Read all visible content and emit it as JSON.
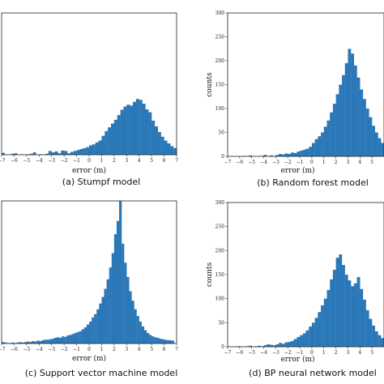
{
  "colors": {
    "bar": "#2b78b8",
    "frame": "#222222"
  },
  "chart_data": [
    {
      "type": "bar",
      "caption": "(a) Stumpf model",
      "xlabel": "error (m)",
      "ylabel": "",
      "xlim": [
        -7,
        7
      ],
      "ylim": [
        0,
        300
      ],
      "xticks": [
        "−7",
        "−6",
        "−5",
        "−4",
        "−3",
        "−2",
        "−1",
        "0",
        "1",
        "2",
        "3",
        "4",
        "5",
        "6",
        "7"
      ],
      "yticks": [],
      "bin_width": 0.25,
      "bin_start": -7,
      "values": [
        4,
        0,
        0,
        2,
        3,
        0,
        1,
        0,
        1,
        2,
        5,
        0,
        1,
        0,
        2,
        8,
        5,
        7,
        3,
        9,
        8,
        3,
        6,
        8,
        10,
        12,
        14,
        16,
        20,
        22,
        26,
        30,
        40,
        50,
        58,
        66,
        74,
        84,
        95,
        102,
        106,
        104,
        112,
        118,
        116,
        108,
        96,
        90,
        72,
        60,
        48,
        38,
        30,
        24,
        18,
        14,
        10,
        8,
        6,
        7,
        9,
        6,
        5,
        4,
        3,
        2,
        2,
        1,
        0,
        2,
        4,
        1,
        0,
        0,
        1,
        1,
        2,
        0,
        0,
        2,
        0,
        1,
        0,
        1,
        0,
        0
      ]
    },
    {
      "type": "bar",
      "caption": "(b) Random forest model",
      "xlabel": "error (m)",
      "ylabel": "counts",
      "xlim": [
        -7,
        6
      ],
      "ylim": [
        0,
        300
      ],
      "xticks": [
        "−7",
        "−6",
        "−5",
        "−4",
        "−3",
        "−2",
        "−1",
        "0",
        "1",
        "2",
        "3",
        "4",
        "5"
      ],
      "yticks": [
        "0",
        "50",
        "100",
        "150",
        "200",
        "250",
        "300"
      ],
      "bin_width": 0.25,
      "bin_start": -7,
      "values": [
        0,
        0,
        0,
        0,
        0,
        1,
        0,
        2,
        0,
        0,
        0,
        1,
        3,
        0,
        2,
        1,
        3,
        5,
        4,
        6,
        5,
        8,
        7,
        10,
        12,
        14,
        16,
        20,
        28,
        36,
        42,
        50,
        62,
        75,
        92,
        110,
        130,
        150,
        170,
        195,
        225,
        215,
        190,
        165,
        140,
        120,
        100,
        82,
        64,
        50,
        38,
        28,
        20,
        15,
        12,
        9,
        7,
        5,
        4,
        3,
        2,
        2,
        1,
        1,
        0,
        1,
        0,
        2,
        0,
        0,
        0,
        0
      ]
    },
    {
      "type": "bar",
      "caption": "(c) Support vector machine model",
      "xlabel": "error (m)",
      "ylabel": "",
      "xlim": [
        -7,
        7
      ],
      "ylim": [
        0,
        300
      ],
      "xticks": [
        "−7",
        "−6",
        "−5",
        "−4",
        "−3",
        "−2",
        "−1",
        "0",
        "1",
        "2",
        "3",
        "4",
        "5",
        "6",
        "7"
      ],
      "yticks": [],
      "bin_width": 0.2,
      "bin_start": -7,
      "values": [
        3,
        2,
        1,
        1,
        2,
        1,
        2,
        3,
        2,
        3,
        4,
        3,
        5,
        4,
        6,
        5,
        7,
        8,
        8,
        9,
        10,
        12,
        13,
        12,
        15,
        14,
        17,
        18,
        20,
        22,
        24,
        26,
        30,
        34,
        40,
        46,
        55,
        62,
        72,
        84,
        98,
        115,
        135,
        160,
        190,
        230,
        258,
        300,
        210,
        170,
        140,
        110,
        90,
        72,
        58,
        46,
        36,
        28,
        22,
        18,
        15,
        13,
        12,
        10,
        9,
        8,
        7,
        7,
        6,
        5,
        5,
        4,
        4,
        3,
        3,
        2,
        2,
        2,
        1,
        1
      ]
    },
    {
      "type": "bar",
      "caption": "(d) BP neural network model",
      "xlabel": "error (m)",
      "ylabel": "counts",
      "xlim": [
        -7,
        6
      ],
      "ylim": [
        0,
        300
      ],
      "xticks": [
        "−7",
        "−6",
        "−5",
        "−4",
        "−3",
        "−2",
        "−1",
        "0",
        "1",
        "2",
        "3",
        "4",
        "5"
      ],
      "yticks": [
        "0",
        "50",
        "100",
        "150",
        "200",
        "250",
        "300"
      ],
      "bin_width": 0.25,
      "bin_start": -7,
      "values": [
        0,
        0,
        0,
        1,
        0,
        0,
        1,
        2,
        0,
        1,
        2,
        1,
        3,
        5,
        4,
        3,
        5,
        8,
        6,
        9,
        10,
        12,
        16,
        20,
        24,
        28,
        34,
        42,
        50,
        60,
        72,
        86,
        100,
        118,
        140,
        160,
        185,
        192,
        170,
        150,
        138,
        126,
        132,
        145,
        120,
        98,
        76,
        58,
        44,
        32,
        24,
        18,
        14,
        11,
        8,
        6,
        5,
        4,
        3,
        3,
        2,
        1,
        1,
        0,
        1,
        0,
        1,
        0
      ]
    }
  ]
}
